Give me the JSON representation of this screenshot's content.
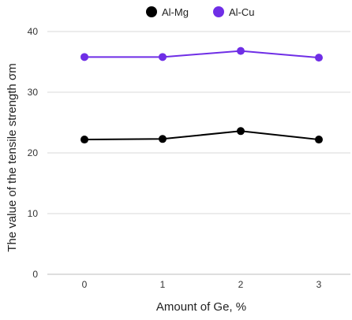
{
  "chart_data": {
    "type": "line",
    "categories": [
      "0",
      "1",
      "2",
      "3"
    ],
    "series": [
      {
        "name": "Al-Mg",
        "color": "#000000",
        "values": [
          22.2,
          22.3,
          23.6,
          22.2
        ]
      },
      {
        "name": "Al-Cu",
        "color": "#6f2ee6",
        "values": [
          35.8,
          35.8,
          36.8,
          35.7
        ]
      }
    ],
    "xlabel": "Amount of Ge, %",
    "ylabel": "The value of the tensile strength σm",
    "ylim": [
      0,
      40
    ],
    "yticks": [
      "0",
      "10",
      "20",
      "30",
      "40"
    ],
    "grid": true,
    "legend_position": "top-center"
  }
}
